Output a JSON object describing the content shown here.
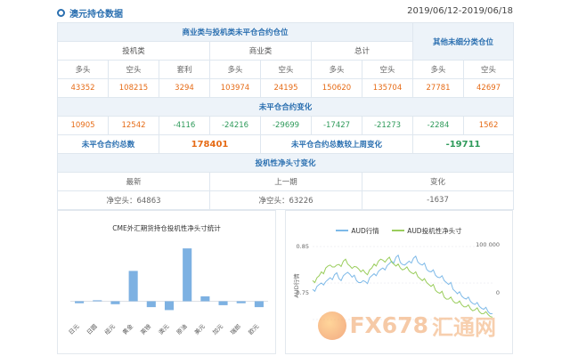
{
  "header": {
    "title": "澳元持仓数据",
    "date_range": "2019/06/12-2019/06/18"
  },
  "table": {
    "group_title": "商业类与投机类未平仓合约仓位",
    "other_title": "其他未细分类仓位",
    "sub_speculative": "投机类",
    "sub_commercial": "商业类",
    "sub_total": "总计",
    "col_labels": [
      "多头",
      "空头",
      "套利",
      "多头",
      "空头",
      "多头",
      "空头",
      "多头",
      "空头"
    ],
    "positions": [
      "43352",
      "108215",
      "3294",
      "103974",
      "24195",
      "150620",
      "135704",
      "27781",
      "42697"
    ],
    "change_title": "未平仓合约变化",
    "changes": [
      "10905",
      "12542",
      "-4116",
      "-24216",
      "-29699",
      "-17427",
      "-21273",
      "-2284",
      "1562"
    ],
    "oi_total_label": "未平仓合约总数",
    "oi_total_value": "178401",
    "oi_change_label": "未平仓合约总数较上周变化",
    "oi_change_value": "-19711",
    "net_title": "投机性净头寸变化",
    "net_latest_label": "最新",
    "net_prev_label": "上一期",
    "net_change_label": "变化",
    "net_latest_value": "净空头：64863",
    "net_prev_value": "净空头：63226",
    "net_change_value": "-1637"
  },
  "chart_data": [
    {
      "type": "bar",
      "title": "CME外汇期货持仓投机性净头寸统计",
      "categories": [
        "日元",
        "日圆",
        "纽元",
        "黄金",
        "英镑",
        "澳元",
        "原油",
        "美元",
        "加元",
        "瑞郎",
        "欧元"
      ],
      "values": [
        -2000,
        1000,
        -3000,
        31000,
        -6000,
        -9000,
        54000,
        5000,
        -4000,
        -2000,
        -6000
      ],
      "ylim": [
        -15000,
        65000
      ],
      "color": "#7db1e2"
    },
    {
      "type": "line",
      "legend_position": "top",
      "ylabel": "AUD行情",
      "left_ticks": [
        "0.85",
        "0.75"
      ],
      "right_ticks": [
        "100 000",
        "0"
      ],
      "left_ylim": [
        0.7,
        0.85
      ],
      "right_ylim": [
        -50000,
        100000
      ],
      "series": [
        {
          "name": "AUD行情",
          "axis": "left",
          "color": "#7db9e8",
          "values": [
            0.762,
            0.768,
            0.775,
            0.778,
            0.786,
            0.792,
            0.784,
            0.79,
            0.797,
            0.787,
            0.78,
            0.776,
            0.778,
            0.786,
            0.794,
            0.799,
            0.806,
            0.811,
            0.82,
            0.828,
            0.817,
            0.812,
            0.82,
            0.826,
            0.818,
            0.812,
            0.803,
            0.798,
            0.791,
            0.786,
            0.78,
            0.772,
            0.762,
            0.753,
            0.748,
            0.742,
            0.737,
            0.731,
            0.727,
            0.721,
            0.716,
            0.712
          ]
        },
        {
          "name": "AUD投机性净头寸",
          "axis": "right",
          "color": "#9acd5c",
          "values": [
            30000,
            36000,
            48000,
            56000,
            62000,
            58000,
            63000,
            70000,
            64000,
            55000,
            58000,
            48000,
            46000,
            52000,
            64000,
            70000,
            72000,
            74000,
            68000,
            60000,
            56000,
            54000,
            50000,
            44000,
            38000,
            30000,
            26000,
            18000,
            10000,
            4000,
            -4000,
            -8000,
            -12000,
            -16000,
            -20000,
            -24000,
            -28000,
            -30000,
            -34000,
            -38000,
            -40000,
            -45000
          ]
        }
      ]
    }
  ],
  "watermark": {
    "brand": "FX678",
    "site": "汇通网"
  }
}
